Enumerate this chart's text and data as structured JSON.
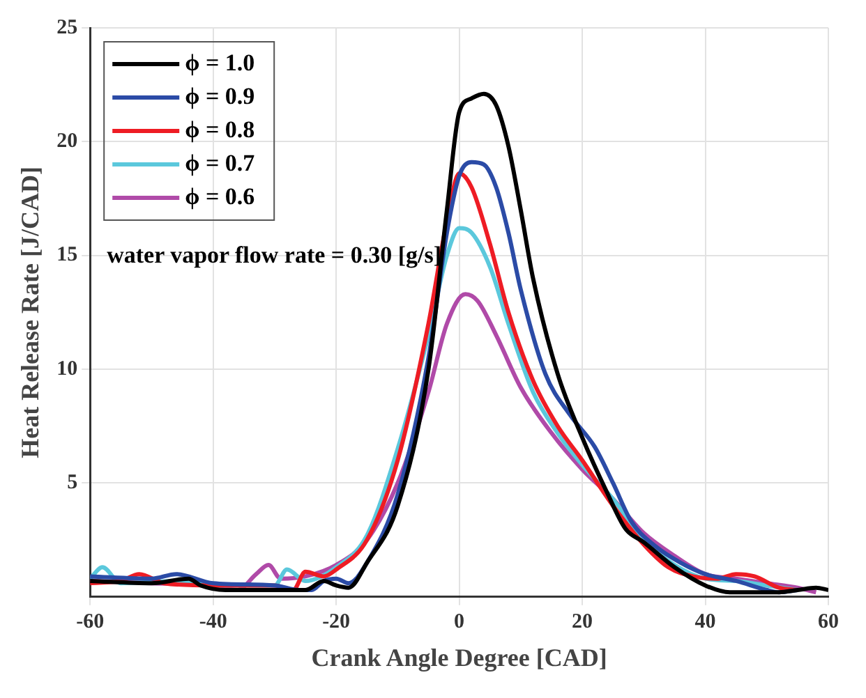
{
  "chart_data": {
    "type": "line",
    "xlabel": "Crank Angle Degree [CAD]",
    "ylabel": "Heat Release Rate [J/CAD]",
    "annotations": [
      "water vapor flow rate = 0.30 [g/s]"
    ],
    "xlim": [
      -60,
      60
    ],
    "xticks": [
      -60,
      -40,
      -20,
      0,
      20,
      40,
      60
    ],
    "ylim": [
      0,
      25
    ],
    "yticks": [
      5,
      10,
      15,
      20,
      25
    ],
    "grid": true,
    "legend": "top left",
    "marker": "none",
    "line_style": "solid",
    "series": [
      {
        "name": "ϕ = 1.0",
        "color": "#000000",
        "x": [
          -60,
          -50,
          -44,
          -42,
          -38,
          -30,
          -25,
          -22,
          -20,
          -18,
          -15,
          -10,
          -5,
          -2,
          0,
          2,
          4,
          6,
          8,
          10,
          12,
          16,
          20,
          24,
          27,
          30,
          35,
          40,
          44,
          52,
          55,
          58,
          60
        ],
        "values": [
          0.7,
          0.6,
          0.8,
          0.5,
          0.3,
          0.3,
          0.3,
          0.7,
          0.5,
          0.4,
          1.5,
          4,
          10,
          17,
          21.3,
          21.9,
          22.1,
          21.6,
          19.8,
          17,
          14,
          9.8,
          7,
          4.6,
          3,
          2.4,
          1.3,
          0.5,
          0.2,
          0.2,
          0.3,
          0.4,
          0.3
        ]
      },
      {
        "name": "ϕ = 0.9",
        "color": "#2b4ba6",
        "x": [
          -60,
          -50,
          -46,
          -40,
          -30,
          -26,
          -24,
          -22,
          -20,
          -18,
          -15,
          -10,
          -5,
          -2,
          0,
          2,
          4,
          6,
          8,
          10,
          14,
          18,
          22,
          25,
          28,
          32,
          36,
          40,
          45,
          50,
          52,
          55
        ],
        "values": [
          0.9,
          0.8,
          1.0,
          0.6,
          0.5,
          0.3,
          0.3,
          0.7,
          0.8,
          0.6,
          1.5,
          4.5,
          10.5,
          16,
          18.5,
          19.1,
          19.0,
          18,
          16,
          13.5,
          9.8,
          8,
          6.6,
          5,
          3.3,
          2.2,
          1.5,
          1.0,
          0.7,
          0.3,
          0.2,
          0.3
        ]
      },
      {
        "name": "ϕ = 0.8",
        "color": "#ee1c24",
        "x": [
          -60,
          -55,
          -52,
          -48,
          -40,
          -30,
          -27,
          -25,
          -22,
          -20,
          -15,
          -10,
          -5,
          -2,
          0,
          2,
          5,
          8,
          12,
          16,
          20,
          25,
          30,
          34,
          38,
          42,
          45,
          48,
          52,
          55
        ],
        "values": [
          0.6,
          0.7,
          1.0,
          0.6,
          0.5,
          0.5,
          0.3,
          1.1,
          0.9,
          1.2,
          2.5,
          6,
          12,
          16.5,
          18.6,
          18,
          15.5,
          12.5,
          9.5,
          7.5,
          6,
          4,
          2.3,
          1.3,
          0.9,
          0.8,
          1.0,
          0.9,
          0.4,
          0.3
        ]
      },
      {
        "name": "ϕ = 0.7",
        "color": "#5bc8dc",
        "x": [
          -60,
          -58,
          -55,
          -45,
          -40,
          -30,
          -28,
          -25,
          -20,
          -15,
          -10,
          -5,
          -2,
          0,
          2,
          5,
          8,
          12,
          16,
          20,
          25,
          30,
          35,
          40,
          45,
          50,
          55
        ],
        "values": [
          0.8,
          1.3,
          0.6,
          0.7,
          0.5,
          0.5,
          1.2,
          0.7,
          1.3,
          2.7,
          6.5,
          11.5,
          15,
          16.2,
          16,
          14.5,
          12,
          9,
          7.2,
          5.8,
          4.3,
          2.5,
          1.4,
          0.8,
          0.7,
          0.5,
          0.3
        ]
      },
      {
        "name": "ϕ = 0.6",
        "color": "#b04aa8",
        "x": [
          -60,
          -50,
          -40,
          -36,
          -33,
          -31,
          -29,
          -25,
          -20,
          -15,
          -10,
          -5,
          -2,
          1,
          3,
          6,
          10,
          15,
          20,
          25,
          30,
          35,
          40,
          45,
          50,
          55,
          58
        ],
        "values": [
          0.7,
          0.6,
          0.5,
          0.3,
          1.0,
          1.4,
          0.8,
          0.9,
          1.4,
          2.5,
          5,
          9,
          12,
          13.3,
          13,
          11.5,
          9.2,
          7.2,
          5.6,
          4.3,
          2.8,
          1.8,
          1.0,
          0.8,
          0.6,
          0.4,
          0.2
        ]
      }
    ]
  }
}
